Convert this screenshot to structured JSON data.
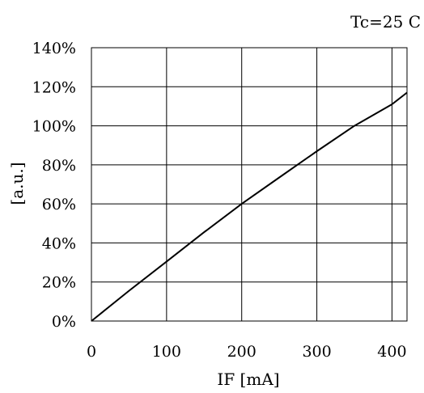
{
  "chart_data": {
    "type": "line",
    "annotation": "Tc=25 C",
    "xlabel": "IF [mA]",
    "ylabel": "[a.u.]",
    "xlim": [
      0,
      420
    ],
    "ylim": [
      0,
      140
    ],
    "x_ticks": [
      0,
      100,
      200,
      300,
      400
    ],
    "x_tick_labels": [
      "0",
      "100",
      "200",
      "300",
      "400"
    ],
    "y_ticks": [
      0,
      20,
      40,
      60,
      80,
      100,
      120,
      140
    ],
    "y_tick_labels": [
      "0%",
      "20%",
      "40%",
      "60%",
      "80%",
      "100%",
      "120%",
      "140%"
    ],
    "grid": true,
    "series": [
      {
        "x": [
          0,
          50,
          100,
          150,
          200,
          250,
          300,
          350,
          400,
          420
        ],
        "y": [
          0,
          15.5,
          30.5,
          45.5,
          60,
          73.5,
          87,
          100,
          111,
          117
        ]
      }
    ]
  }
}
